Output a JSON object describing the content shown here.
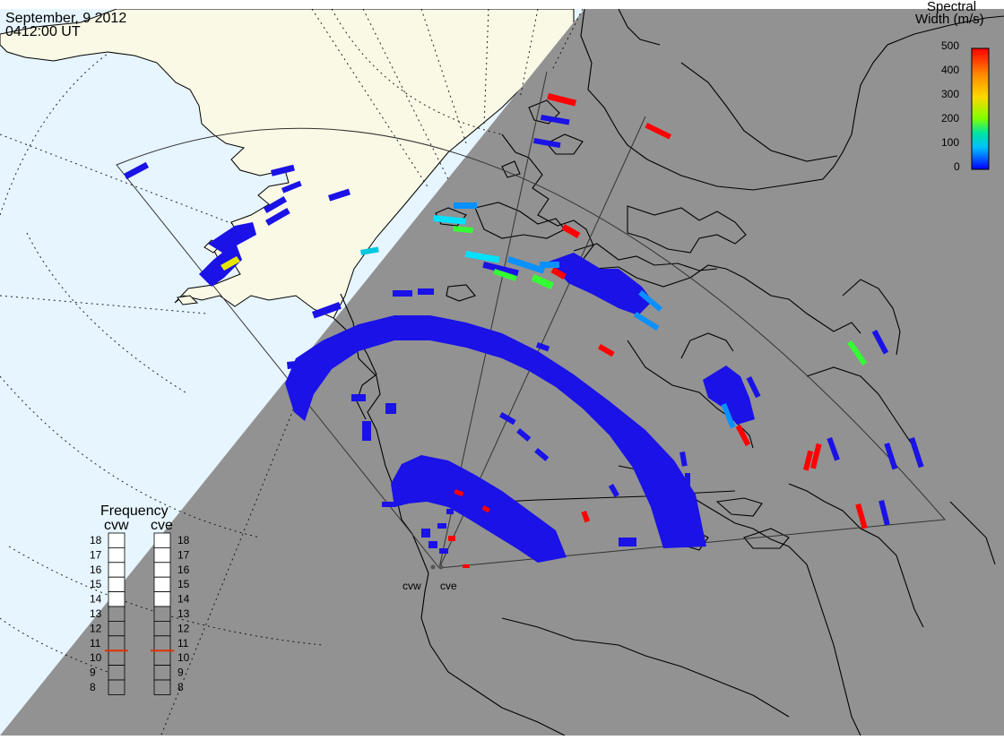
{
  "header": {
    "date": "September, 9 2012",
    "time": "0412:00 UT"
  },
  "colorbar": {
    "title_line1": "Spectral",
    "title_line2": "Width (m/s)",
    "ticks": [
      "500",
      "400",
      "300",
      "200",
      "100",
      "0"
    ],
    "stops": [
      "#ff0000",
      "#ff8c00",
      "#ffd700",
      "#7fff00",
      "#00e5a0",
      "#00bfff",
      "#0000ff"
    ]
  },
  "frequency_panel": {
    "title": "Frequency",
    "radars": [
      {
        "name": "cvw",
        "selected": "10.5"
      },
      {
        "name": "cve",
        "selected": "10.5"
      }
    ],
    "scale": [
      "18",
      "17",
      "16",
      "15",
      "14",
      "13",
      "12",
      "11",
      "10",
      "9",
      "8"
    ]
  },
  "radar_sites": [
    {
      "name": "cvw"
    },
    {
      "name": "cve"
    }
  ],
  "colors": {
    "ocean": "#e6f5ff",
    "land": "#faf9e6",
    "night": "#929292",
    "fov_line": "#333333",
    "echo_low": "#1a12e6",
    "echo_mid": "#00e0ff",
    "echo_high": "#ff0000",
    "marker": "#e03000"
  }
}
